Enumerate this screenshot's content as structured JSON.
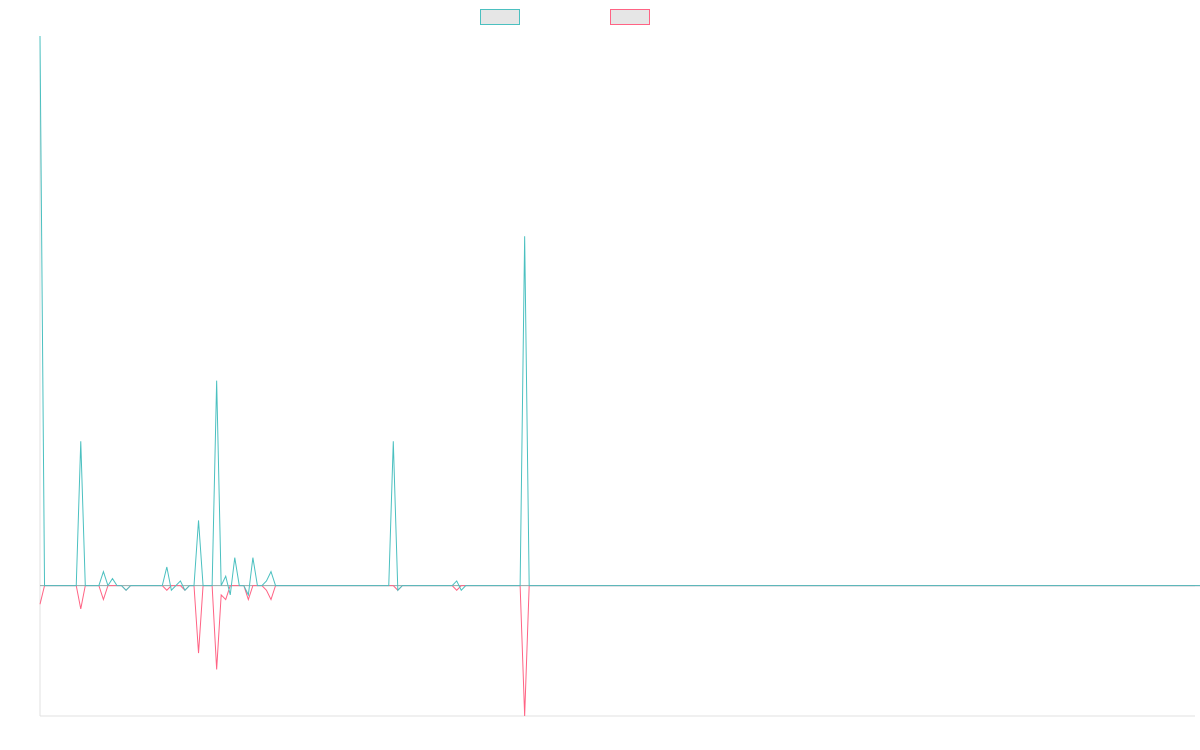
{
  "chart_data": {
    "type": "line",
    "title": "",
    "xlabel": "",
    "ylabel": "",
    "grid": false,
    "legend_position": "top-center",
    "x_count": 256,
    "ylim": [
      -28,
      118
    ],
    "colors": {
      "series_0": "#4bc0c0",
      "series_1": "#ff6384",
      "axis": "#e0e0e0",
      "legend_fill": "#e6e6e6"
    },
    "series": [
      {
        "name": "",
        "values": [
          118,
          0,
          0,
          0,
          0,
          0,
          0,
          0,
          0,
          31,
          0,
          0,
          0,
          0,
          3,
          0,
          1.5,
          0,
          0,
          -1,
          0,
          0,
          0,
          0,
          0,
          0,
          0,
          0,
          4,
          -1,
          0,
          1,
          -1,
          0,
          0,
          14,
          0,
          0,
          0,
          44,
          0,
          2,
          -2,
          6,
          0,
          0,
          -2,
          6,
          0,
          0,
          1,
          3,
          0,
          0,
          0,
          0,
          0,
          0,
          0,
          0,
          0,
          0,
          0,
          0,
          0,
          0,
          0,
          0,
          0,
          0,
          0,
          0,
          0,
          0,
          0,
          0,
          0,
          0,
          31,
          -1,
          0,
          0,
          0,
          0,
          0,
          0,
          0,
          0,
          0,
          0,
          0,
          0,
          1,
          -1,
          0,
          0,
          0,
          0,
          0,
          0,
          0,
          0,
          0,
          0,
          0,
          0,
          0,
          75,
          0,
          0,
          0,
          0,
          0,
          0,
          0,
          0,
          0,
          0,
          0,
          0,
          0,
          0,
          0,
          0,
          0,
          0,
          0,
          0,
          0,
          0,
          0,
          0,
          0,
          0,
          0,
          0,
          0,
          0,
          0,
          0,
          0,
          0,
          0,
          0,
          0,
          0,
          0,
          0,
          0,
          0,
          0,
          0,
          0,
          0,
          0,
          0,
          0,
          0,
          0,
          0,
          0,
          0,
          0,
          0,
          0,
          0,
          0,
          0,
          0,
          0,
          0,
          0,
          0,
          0,
          0,
          0,
          0,
          0,
          0,
          0,
          0,
          0,
          0,
          0,
          0,
          0,
          0,
          0,
          0,
          0,
          0,
          0,
          0,
          0,
          0,
          0,
          0,
          0,
          0,
          0,
          0,
          0,
          0,
          0,
          0,
          0,
          0,
          0,
          0,
          0,
          0,
          0,
          0,
          0,
          0,
          0,
          0,
          0,
          0,
          0,
          0,
          0,
          0,
          0,
          0,
          0,
          0,
          0,
          0,
          0,
          0,
          0,
          0,
          0,
          0,
          0,
          0,
          0,
          0,
          0,
          0,
          0,
          0,
          0,
          0,
          0,
          0,
          0,
          0,
          0,
          0,
          0,
          0,
          0,
          0,
          0,
          0,
          0,
          0,
          0,
          0
        ]
      },
      {
        "name": "",
        "values": [
          -4,
          0,
          0,
          0,
          0,
          0,
          0,
          0,
          0,
          -5,
          0,
          0,
          0,
          0,
          -3,
          0,
          0,
          0,
          0,
          -1,
          0,
          0,
          0,
          0,
          0,
          0,
          0,
          0,
          -1,
          0,
          0,
          0,
          -1,
          0,
          0,
          -14.5,
          0,
          0,
          0,
          -18,
          -2,
          -3,
          0,
          0,
          0,
          0,
          -3,
          0,
          0,
          0,
          -1,
          -3,
          0,
          0,
          0,
          0,
          0,
          0,
          0,
          0,
          0,
          0,
          0,
          0,
          0,
          0,
          0,
          0,
          0,
          0,
          0,
          0,
          0,
          0,
          0,
          0,
          0,
          0,
          0,
          -1,
          0,
          0,
          0,
          0,
          0,
          0,
          0,
          0,
          0,
          0,
          0,
          0,
          -1,
          0,
          0,
          0,
          0,
          0,
          0,
          0,
          0,
          0,
          0,
          0,
          0,
          0,
          0,
          -28,
          0,
          0,
          0,
          0,
          0,
          0,
          0,
          0,
          0,
          0,
          0,
          0,
          0,
          0,
          0,
          0,
          0,
          0,
          0,
          0,
          0,
          0,
          0,
          0,
          0,
          0,
          0,
          0,
          0,
          0,
          0,
          0,
          0,
          0,
          0,
          0,
          0,
          0,
          0,
          0,
          0,
          0,
          0,
          0,
          0,
          0,
          0,
          0,
          0,
          0,
          0,
          0,
          0,
          0,
          0,
          0,
          0,
          0,
          0,
          0,
          0,
          0,
          0,
          0,
          0,
          0,
          0,
          0,
          0,
          0,
          0,
          0,
          0,
          0,
          0,
          0,
          0,
          0,
          0,
          0,
          0,
          0,
          0,
          0,
          0,
          0,
          0,
          0,
          0,
          0,
          0,
          0,
          0,
          0,
          0,
          0,
          0,
          0,
          0,
          0,
          0,
          0,
          0,
          0,
          0,
          0,
          0,
          0,
          0,
          0,
          0,
          0,
          0,
          0,
          0,
          0,
          0,
          0,
          0,
          0,
          0,
          0,
          0,
          0,
          0,
          0,
          0,
          0,
          0,
          0,
          0,
          0,
          0,
          0,
          0,
          0,
          0,
          0,
          0,
          0,
          0,
          0,
          0,
          0,
          0,
          0,
          0,
          0,
          0,
          0,
          0,
          0,
          0,
          0
        ]
      }
    ]
  }
}
